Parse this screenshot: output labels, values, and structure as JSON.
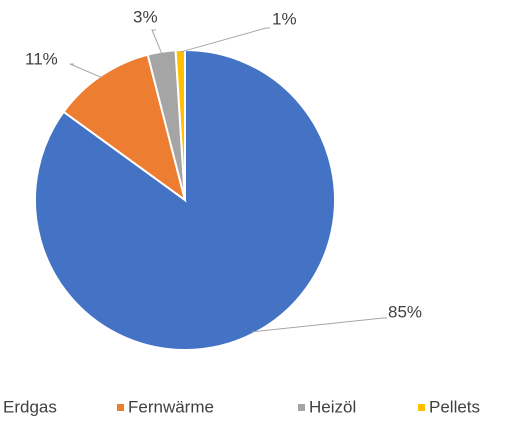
{
  "chart_data": {
    "type": "pie",
    "categories": [
      "Erdgas",
      "Fernwärme",
      "Heizöl",
      "Pellets"
    ],
    "values": [
      85,
      11,
      3,
      1
    ],
    "value_labels": [
      "85%",
      "11%",
      "3%",
      "1%"
    ],
    "colors": [
      "#4472c4",
      "#ed7d31",
      "#a5a5a5",
      "#ffc000"
    ],
    "legend": "bottom"
  }
}
